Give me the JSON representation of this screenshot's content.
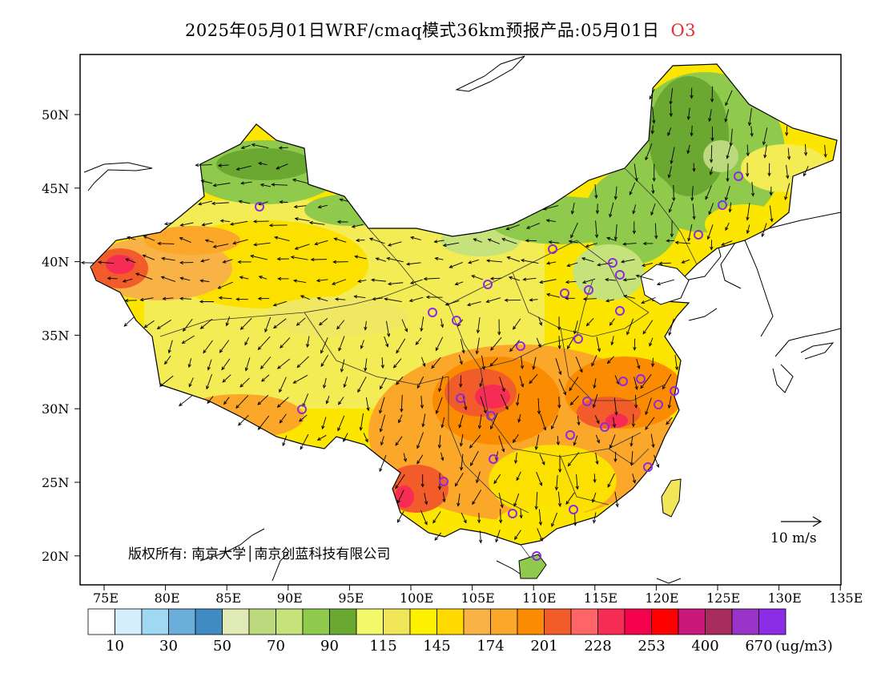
{
  "title": {
    "main": "2025年05月01日WRF/cmaq模式36km预报产品:05月01日",
    "variable": "O3",
    "variable_color": "#e03030"
  },
  "map": {
    "lon_ticks": [
      "75E",
      "80E",
      "85E",
      "90E",
      "95E",
      "100E",
      "105E",
      "110E",
      "115E",
      "120E",
      "125E",
      "130E",
      "135E"
    ],
    "lat_ticks": [
      "50N",
      "45N",
      "40N",
      "35N",
      "30N",
      "25N",
      "20N"
    ],
    "copyright": "版权所有: 南京大学│南京创蓝科技有限公司",
    "wind_reference": "10 m/s",
    "projection": "lat-lon",
    "lon_range": [
      73,
      135
    ],
    "lat_range": [
      18,
      54
    ]
  },
  "colorbar": {
    "colors": [
      "#ffffff",
      "#d4eefb",
      "#a0d8f4",
      "#6aaedb",
      "#3f8bc2",
      "#dfeab6",
      "#bdd97e",
      "#c6e27a",
      "#8fca4c",
      "#6aa832",
      "#f3f76a",
      "#f1e55a",
      "#fff000",
      "#ffda00",
      "#f8b246",
      "#fba72a",
      "#fb8b00",
      "#f25c2a",
      "#ff6469",
      "#f62c54",
      "#f5024c",
      "#ff0000",
      "#c8187a",
      "#a62d5c",
      "#9a34c8",
      "#8b2de6"
    ],
    "labels": [
      "10",
      "30",
      "50",
      "70",
      "90",
      "115",
      "145",
      "174",
      "201",
      "228",
      "253",
      "400",
      "670"
    ],
    "unit": "(ug/m3)"
  },
  "stations_color": "#8a2be2"
}
